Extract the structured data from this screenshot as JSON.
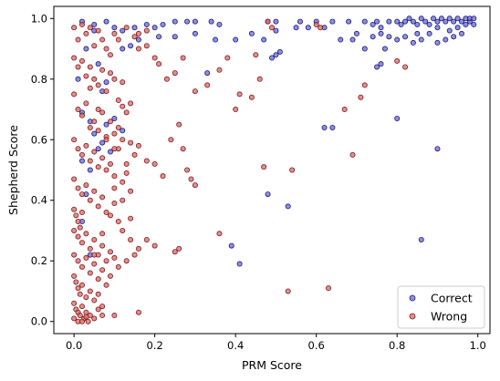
{
  "chart_data": {
    "type": "scatter",
    "xlabel": "PRM Score",
    "ylabel": "Shepherd Score",
    "xlim": [
      -0.05,
      1.03
    ],
    "ylim": [
      -0.04,
      1.04
    ],
    "xticks": [
      0.0,
      0.2,
      0.4,
      0.6,
      0.8,
      1.0
    ],
    "xtick_labels": [
      "0.0",
      "0.2",
      "0.4",
      "0.6",
      "0.8",
      "1.0"
    ],
    "yticks": [
      0.0,
      0.2,
      0.4,
      0.6,
      0.8,
      1.0
    ],
    "ytick_labels": [
      "0.0",
      "0.2",
      "0.4",
      "0.6",
      "0.8",
      "1.0"
    ],
    "grid": false,
    "legend": "bottom-right",
    "series": [
      {
        "name": "Correct",
        "color": "#6a6ad2",
        "edge_color": "#1a1a80",
        "points": [
          [
            0.02,
            0.99
          ],
          [
            0.05,
            0.98
          ],
          [
            0.08,
            0.99
          ],
          [
            0.1,
            0.97
          ],
          [
            0.12,
            0.96
          ],
          [
            0.15,
            0.97
          ],
          [
            0.18,
            0.98
          ],
          [
            0.2,
            0.97
          ],
          [
            0.22,
            0.98
          ],
          [
            0.25,
            0.99
          ],
          [
            0.28,
            0.99
          ],
          [
            0.3,
            0.99
          ],
          [
            0.34,
            0.99
          ],
          [
            0.36,
            0.98
          ],
          [
            0.48,
            0.99
          ],
          [
            0.5,
            0.99
          ],
          [
            0.56,
            0.99
          ],
          [
            0.6,
            0.99
          ],
          [
            0.64,
            0.99
          ],
          [
            0.68,
            0.99
          ],
          [
            0.72,
            0.99
          ],
          [
            0.74,
            0.98
          ],
          [
            0.75,
            0.99
          ],
          [
            0.76,
            0.97
          ],
          [
            0.78,
            0.99
          ],
          [
            0.8,
            0.99
          ],
          [
            0.81,
            0.98
          ],
          [
            0.82,
            0.99
          ],
          [
            0.83,
            1.0
          ],
          [
            0.84,
            0.99
          ],
          [
            0.85,
            0.98
          ],
          [
            0.86,
            1.0
          ],
          [
            0.87,
            0.99
          ],
          [
            0.88,
            0.98
          ],
          [
            0.89,
            1.0
          ],
          [
            0.9,
            0.99
          ],
          [
            0.9,
            0.97
          ],
          [
            0.91,
            1.0
          ],
          [
            0.92,
            0.99
          ],
          [
            0.93,
            1.0
          ],
          [
            0.93,
            0.96
          ],
          [
            0.94,
            0.99
          ],
          [
            0.95,
            1.0
          ],
          [
            0.95,
            0.97
          ],
          [
            0.96,
            0.99
          ],
          [
            0.97,
            1.0
          ],
          [
            0.97,
            0.98
          ],
          [
            0.98,
            0.99
          ],
          [
            0.98,
            1.0
          ],
          [
            0.99,
            1.0
          ],
          [
            0.99,
            0.98
          ],
          [
            0.96,
            0.95
          ],
          [
            0.94,
            0.94
          ],
          [
            0.92,
            0.93
          ],
          [
            0.9,
            0.92
          ],
          [
            0.88,
            0.95
          ],
          [
            0.86,
            0.93
          ],
          [
            0.85,
            0.95
          ],
          [
            0.84,
            0.92
          ],
          [
            0.82,
            0.94
          ],
          [
            0.8,
            0.93
          ],
          [
            0.78,
            0.94
          ],
          [
            0.77,
            0.9
          ],
          [
            0.76,
            0.95
          ],
          [
            0.74,
            0.94
          ],
          [
            0.72,
            0.9
          ],
          [
            0.7,
            0.95
          ],
          [
            0.69,
            0.93
          ],
          [
            0.66,
            0.93
          ],
          [
            0.62,
            0.97
          ],
          [
            0.58,
            0.97
          ],
          [
            0.55,
            0.97
          ],
          [
            0.5,
            0.96
          ],
          [
            0.47,
            0.93
          ],
          [
            0.44,
            0.95
          ],
          [
            0.4,
            0.93
          ],
          [
            0.35,
            0.93
          ],
          [
            0.3,
            0.95
          ],
          [
            0.25,
            0.94
          ],
          [
            0.21,
            0.94
          ],
          [
            0.16,
            0.93
          ],
          [
            0.14,
            0.91
          ],
          [
            0.12,
            0.9
          ],
          [
            0.49,
            0.87
          ],
          [
            0.5,
            0.88
          ],
          [
            0.51,
            0.89
          ],
          [
            0.33,
            0.82
          ],
          [
            0.75,
            0.84
          ],
          [
            0.76,
            0.85
          ],
          [
            0.8,
            0.67
          ],
          [
            0.62,
            0.64
          ],
          [
            0.64,
            0.64
          ],
          [
            0.9,
            0.57
          ],
          [
            0.48,
            0.42
          ],
          [
            0.53,
            0.38
          ],
          [
            0.39,
            0.25
          ],
          [
            0.41,
            0.19
          ],
          [
            0.86,
            0.27
          ],
          [
            0.02,
            0.53
          ],
          [
            0.04,
            0.5
          ],
          [
            0.06,
            0.57
          ],
          [
            0.04,
            0.66
          ],
          [
            0.08,
            0.65
          ],
          [
            0.03,
            0.42
          ],
          [
            0.05,
            0.62
          ],
          [
            0.07,
            0.59
          ],
          [
            0.02,
            0.69
          ],
          [
            0.06,
            0.85
          ],
          [
            0.09,
            0.56
          ],
          [
            0.12,
            0.63
          ],
          [
            0.1,
            0.67
          ],
          [
            0.05,
            0.96
          ],
          [
            0.07,
            0.76
          ],
          [
            0.03,
            0.9
          ],
          [
            0.01,
            0.8
          ],
          [
            0.08,
            0.79
          ],
          [
            0.02,
            0.33
          ],
          [
            0.04,
            0.22
          ]
        ]
      },
      {
        "name": "Wrong",
        "color": "#d56a6a",
        "edge_color": "#801a1a",
        "points": [
          [
            0.0,
            0.97
          ],
          [
            0.01,
            0.93
          ],
          [
            0.02,
            0.98
          ],
          [
            0.03,
            0.95
          ],
          [
            0.04,
            0.97
          ],
          [
            0.05,
            0.91
          ],
          [
            0.06,
            0.96
          ],
          [
            0.07,
            0.93
          ],
          [
            0.08,
            0.9
          ],
          [
            0.09,
            0.88
          ],
          [
            0.1,
            0.95
          ],
          [
            0.11,
            0.93
          ],
          [
            0.13,
            0.97
          ],
          [
            0.15,
            0.94
          ],
          [
            0.16,
            0.95
          ],
          [
            0.18,
            0.96
          ],
          [
            0.0,
            0.87
          ],
          [
            0.01,
            0.84
          ],
          [
            0.02,
            0.86
          ],
          [
            0.03,
            0.81
          ],
          [
            0.04,
            0.84
          ],
          [
            0.05,
            0.8
          ],
          [
            0.06,
            0.78
          ],
          [
            0.07,
            0.83
          ],
          [
            0.08,
            0.76
          ],
          [
            0.09,
            0.82
          ],
          [
            0.1,
            0.8
          ],
          [
            0.11,
            0.73
          ],
          [
            0.12,
            0.71
          ],
          [
            0.13,
            0.69
          ],
          [
            0.14,
            0.72
          ],
          [
            0.0,
            0.75
          ],
          [
            0.01,
            0.7
          ],
          [
            0.02,
            0.68
          ],
          [
            0.03,
            0.72
          ],
          [
            0.04,
            0.64
          ],
          [
            0.05,
            0.66
          ],
          [
            0.06,
            0.63
          ],
          [
            0.07,
            0.69
          ],
          [
            0.08,
            0.61
          ],
          [
            0.09,
            0.66
          ],
          [
            0.1,
            0.62
          ],
          [
            0.11,
            0.64
          ],
          [
            0.12,
            0.6
          ],
          [
            0.0,
            0.6
          ],
          [
            0.01,
            0.57
          ],
          [
            0.02,
            0.55
          ],
          [
            0.03,
            0.58
          ],
          [
            0.04,
            0.53
          ],
          [
            0.05,
            0.56
          ],
          [
            0.06,
            0.51
          ],
          [
            0.07,
            0.54
          ],
          [
            0.08,
            0.5
          ],
          [
            0.09,
            0.52
          ],
          [
            0.1,
            0.48
          ],
          [
            0.11,
            0.57
          ],
          [
            0.12,
            0.46
          ],
          [
            0.13,
            0.49
          ],
          [
            0.14,
            0.43
          ],
          [
            0.0,
            0.47
          ],
          [
            0.01,
            0.44
          ],
          [
            0.02,
            0.42
          ],
          [
            0.03,
            0.45
          ],
          [
            0.04,
            0.4
          ],
          [
            0.05,
            0.43
          ],
          [
            0.06,
            0.38
          ],
          [
            0.07,
            0.41
          ],
          [
            0.08,
            0.36
          ],
          [
            0.09,
            0.35
          ],
          [
            0.1,
            0.39
          ],
          [
            0.11,
            0.33
          ],
          [
            0.12,
            0.3
          ],
          [
            0.14,
            0.27
          ],
          [
            0.0,
            0.37
          ],
          [
            0.005,
            0.35
          ],
          [
            0.01,
            0.33
          ],
          [
            0.015,
            0.31
          ],
          [
            0.02,
            0.36
          ],
          [
            0.0,
            0.3
          ],
          [
            0.01,
            0.28
          ],
          [
            0.02,
            0.26
          ],
          [
            0.03,
            0.29
          ],
          [
            0.04,
            0.24
          ],
          [
            0.05,
            0.27
          ],
          [
            0.06,
            0.22
          ],
          [
            0.07,
            0.25
          ],
          [
            0.08,
            0.2
          ],
          [
            0.09,
            0.23
          ],
          [
            0.1,
            0.21
          ],
          [
            0.0,
            0.22
          ],
          [
            0.01,
            0.2
          ],
          [
            0.02,
            0.18
          ],
          [
            0.03,
            0.21
          ],
          [
            0.04,
            0.16
          ],
          [
            0.05,
            0.19
          ],
          [
            0.06,
            0.14
          ],
          [
            0.07,
            0.17
          ],
          [
            0.08,
            0.12
          ],
          [
            0.09,
            0.15
          ],
          [
            0.11,
            0.18
          ],
          [
            0.13,
            0.2
          ],
          [
            0.0,
            0.15
          ],
          [
            0.005,
            0.13
          ],
          [
            0.01,
            0.11
          ],
          [
            0.015,
            0.09
          ],
          [
            0.02,
            0.12
          ],
          [
            0.03,
            0.08
          ],
          [
            0.04,
            0.1
          ],
          [
            0.05,
            0.07
          ],
          [
            0.06,
            0.09
          ],
          [
            0.07,
            0.05
          ],
          [
            0.0,
            0.06
          ],
          [
            0.005,
            0.04
          ],
          [
            0.01,
            0.03
          ],
          [
            0.015,
            0.02
          ],
          [
            0.02,
            0.05
          ],
          [
            0.025,
            0.01
          ],
          [
            0.03,
            0.03
          ],
          [
            0.035,
            0.0
          ],
          [
            0.04,
            0.02
          ],
          [
            0.05,
            0.01
          ],
          [
            0.06,
            0.04
          ],
          [
            0.07,
            0.02
          ],
          [
            0.0,
            0.01
          ],
          [
            0.01,
            0.0
          ],
          [
            0.02,
            0.0
          ],
          [
            0.03,
            0.015
          ],
          [
            0.18,
            0.91
          ],
          [
            0.2,
            0.87
          ],
          [
            0.21,
            0.85
          ],
          [
            0.23,
            0.8
          ],
          [
            0.25,
            0.82
          ],
          [
            0.27,
            0.87
          ],
          [
            0.3,
            0.76
          ],
          [
            0.33,
            0.78
          ],
          [
            0.36,
            0.83
          ],
          [
            0.38,
            0.87
          ],
          [
            0.4,
            0.7
          ],
          [
            0.41,
            0.75
          ],
          [
            0.44,
            0.74
          ],
          [
            0.45,
            0.88
          ],
          [
            0.46,
            0.8
          ],
          [
            0.14,
            0.59
          ],
          [
            0.15,
            0.55
          ],
          [
            0.16,
            0.58
          ],
          [
            0.18,
            0.53
          ],
          [
            0.2,
            0.52
          ],
          [
            0.22,
            0.48
          ],
          [
            0.24,
            0.6
          ],
          [
            0.26,
            0.65
          ],
          [
            0.27,
            0.57
          ],
          [
            0.28,
            0.5
          ],
          [
            0.29,
            0.47
          ],
          [
            0.3,
            0.45
          ],
          [
            0.16,
            0.24
          ],
          [
            0.18,
            0.27
          ],
          [
            0.2,
            0.25
          ],
          [
            0.25,
            0.23
          ],
          [
            0.26,
            0.24
          ],
          [
            0.36,
            0.29
          ],
          [
            0.47,
            0.51
          ],
          [
            0.48,
            0.99
          ],
          [
            0.49,
            0.97
          ],
          [
            0.54,
            0.5
          ],
          [
            0.53,
            0.1
          ],
          [
            0.6,
            0.98
          ],
          [
            0.61,
            0.97
          ],
          [
            0.63,
            0.11
          ],
          [
            0.67,
            0.7
          ],
          [
            0.69,
            0.55
          ],
          [
            0.71,
            0.74
          ],
          [
            0.72,
            0.78
          ],
          [
            0.8,
            0.86
          ],
          [
            0.82,
            0.84
          ],
          [
            0.16,
            0.03
          ],
          [
            0.15,
            0.22
          ],
          [
            0.12,
            0.4
          ],
          [
            0.14,
            0.34
          ],
          [
            0.1,
            0.44
          ],
          [
            0.13,
            0.52
          ],
          [
            0.1,
            0.57
          ],
          [
            0.08,
            0.6
          ],
          [
            0.12,
            0.79
          ],
          [
            0.16,
            0.9
          ],
          [
            0.06,
            0.7
          ],
          [
            0.04,
            0.77
          ],
          [
            0.1,
            0.02
          ],
          [
            0.05,
            0.22
          ],
          [
            0.07,
            0.29
          ]
        ]
      }
    ]
  }
}
